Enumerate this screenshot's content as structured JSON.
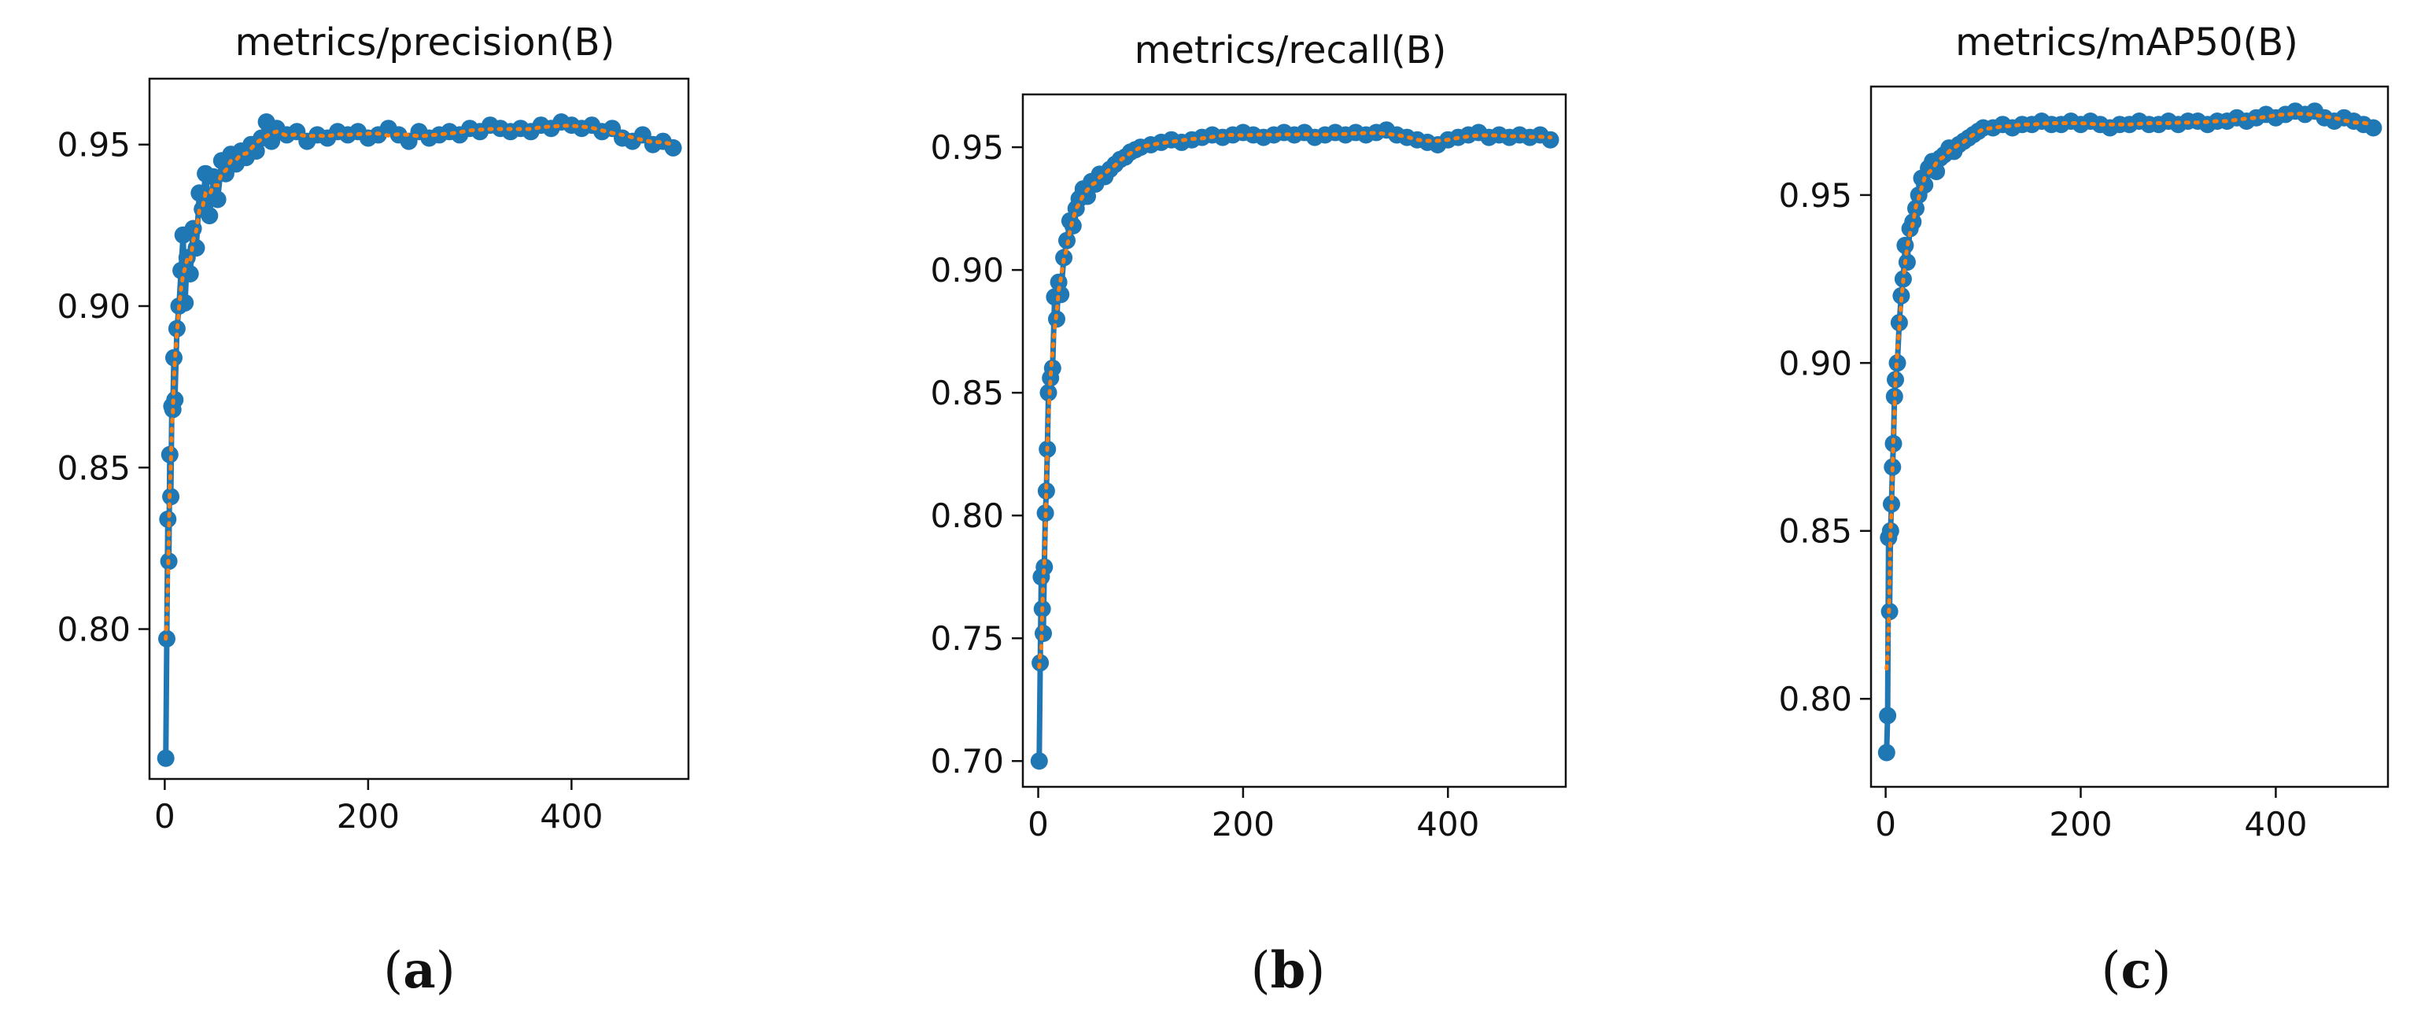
{
  "colors": {
    "series": "#1f77b4",
    "smooth": "#ff7f0e",
    "axis": "#111111"
  },
  "chart_data": [
    {
      "type": "line",
      "title": "metrics/precision(B)",
      "panel_label": "(a)",
      "xlabel": "",
      "ylabel": "",
      "xlim": [
        -15,
        515
      ],
      "ylim": [
        0.7536,
        0.9704
      ],
      "xticks": [
        0,
        200,
        400
      ],
      "xtick_labels": [
        "0",
        "200",
        "400"
      ],
      "yticks": [
        0.8,
        0.85,
        0.9,
        0.95
      ],
      "ytick_labels": [
        "0.80",
        "0.85",
        "0.90",
        "0.95"
      ],
      "series": [
        {
          "x": [
            1,
            2,
            3,
            4,
            5,
            6,
            7,
            8,
            9,
            10,
            12,
            14,
            16,
            18,
            20,
            22,
            25,
            28,
            31,
            34,
            37,
            40,
            44,
            48,
            52,
            56,
            60,
            65,
            70,
            75,
            80,
            85,
            90,
            95,
            100,
            105,
            110,
            120,
            130,
            140,
            150,
            160,
            170,
            180,
            190,
            200,
            210,
            220,
            230,
            240,
            250,
            260,
            270,
            280,
            290,
            300,
            310,
            320,
            330,
            340,
            350,
            360,
            370,
            380,
            390,
            400,
            410,
            420,
            430,
            440,
            450,
            460,
            470,
            480,
            490,
            500
          ],
          "values": [
            0.76,
            0.797,
            0.834,
            0.821,
            0.854,
            0.841,
            0.869,
            0.868,
            0.884,
            0.871,
            0.893,
            0.9,
            0.911,
            0.922,
            0.901,
            0.915,
            0.91,
            0.924,
            0.918,
            0.935,
            0.93,
            0.941,
            0.928,
            0.94,
            0.933,
            0.945,
            0.941,
            0.947,
            0.944,
            0.948,
            0.946,
            0.95,
            0.948,
            0.952,
            0.957,
            0.951,
            0.955,
            0.953,
            0.954,
            0.951,
            0.953,
            0.952,
            0.954,
            0.953,
            0.954,
            0.952,
            0.953,
            0.955,
            0.953,
            0.951,
            0.954,
            0.952,
            0.953,
            0.954,
            0.953,
            0.955,
            0.954,
            0.956,
            0.955,
            0.954,
            0.955,
            0.954,
            0.956,
            0.955,
            0.957,
            0.956,
            0.955,
            0.956,
            0.954,
            0.955,
            0.952,
            0.951,
            0.953,
            0.95,
            0.951,
            0.949
          ]
        }
      ]
    },
    {
      "type": "line",
      "title": "metrics/recall(B)",
      "panel_label": "(b)",
      "xlabel": "",
      "ylabel": "",
      "xlim": [
        -15,
        515
      ],
      "ylim": [
        0.6895,
        0.9715
      ],
      "xticks": [
        0,
        200,
        400
      ],
      "xtick_labels": [
        "0",
        "200",
        "400"
      ],
      "yticks": [
        0.7,
        0.75,
        0.8,
        0.85,
        0.9,
        0.95
      ],
      "ytick_labels": [
        "0.70",
        "0.75",
        "0.80",
        "0.85",
        "0.90",
        "0.95"
      ],
      "series": [
        {
          "x": [
            1,
            2,
            3,
            4,
            5,
            6,
            7,
            8,
            9,
            10,
            12,
            14,
            16,
            18,
            20,
            22,
            25,
            28,
            31,
            34,
            37,
            40,
            44,
            48,
            52,
            56,
            60,
            65,
            70,
            75,
            80,
            85,
            90,
            95,
            100,
            110,
            120,
            130,
            140,
            150,
            160,
            170,
            180,
            190,
            200,
            210,
            220,
            230,
            240,
            250,
            260,
            270,
            280,
            290,
            300,
            310,
            320,
            330,
            340,
            350,
            360,
            370,
            380,
            390,
            400,
            410,
            420,
            430,
            440,
            450,
            460,
            470,
            480,
            490,
            500
          ],
          "values": [
            0.7,
            0.74,
            0.775,
            0.762,
            0.752,
            0.779,
            0.801,
            0.81,
            0.827,
            0.85,
            0.856,
            0.86,
            0.889,
            0.88,
            0.895,
            0.89,
            0.905,
            0.912,
            0.92,
            0.918,
            0.925,
            0.929,
            0.933,
            0.93,
            0.936,
            0.935,
            0.939,
            0.938,
            0.941,
            0.943,
            0.945,
            0.946,
            0.948,
            0.949,
            0.95,
            0.951,
            0.952,
            0.953,
            0.952,
            0.953,
            0.954,
            0.955,
            0.954,
            0.955,
            0.956,
            0.955,
            0.954,
            0.955,
            0.956,
            0.955,
            0.956,
            0.954,
            0.955,
            0.956,
            0.955,
            0.956,
            0.955,
            0.956,
            0.957,
            0.955,
            0.954,
            0.953,
            0.952,
            0.951,
            0.953,
            0.954,
            0.955,
            0.956,
            0.954,
            0.955,
            0.954,
            0.955,
            0.954,
            0.955,
            0.953
          ]
        }
      ]
    },
    {
      "type": "line",
      "title": "metrics/mAP50(B)",
      "panel_label": "(c)",
      "xlabel": "",
      "ylabel": "",
      "xlim": [
        -15,
        515
      ],
      "ylim": [
        0.7738,
        0.9823
      ],
      "xticks": [
        0,
        200,
        400
      ],
      "xtick_labels": [
        "0",
        "200",
        "400"
      ],
      "yticks": [
        0.8,
        0.85,
        0.9,
        0.95
      ],
      "ytick_labels": [
        "0.80",
        "0.85",
        "0.90",
        "0.95"
      ],
      "series": [
        {
          "x": [
            1,
            2,
            3,
            4,
            5,
            6,
            7,
            8,
            9,
            10,
            12,
            14,
            16,
            18,
            20,
            22,
            25,
            28,
            31,
            34,
            37,
            40,
            44,
            48,
            52,
            56,
            60,
            65,
            70,
            75,
            80,
            85,
            90,
            95,
            100,
            110,
            120,
            130,
            140,
            150,
            160,
            170,
            180,
            190,
            200,
            210,
            220,
            230,
            240,
            250,
            260,
            270,
            280,
            290,
            300,
            310,
            320,
            330,
            340,
            350,
            360,
            370,
            380,
            390,
            400,
            410,
            420,
            430,
            440,
            450,
            460,
            470,
            480,
            490,
            500
          ],
          "values": [
            0.784,
            0.795,
            0.848,
            0.826,
            0.85,
            0.858,
            0.869,
            0.876,
            0.89,
            0.895,
            0.9,
            0.912,
            0.92,
            0.925,
            0.935,
            0.93,
            0.94,
            0.942,
            0.946,
            0.95,
            0.955,
            0.953,
            0.958,
            0.96,
            0.957,
            0.961,
            0.962,
            0.964,
            0.963,
            0.965,
            0.966,
            0.967,
            0.968,
            0.969,
            0.97,
            0.97,
            0.971,
            0.97,
            0.971,
            0.971,
            0.972,
            0.971,
            0.971,
            0.972,
            0.971,
            0.972,
            0.971,
            0.97,
            0.971,
            0.971,
            0.972,
            0.971,
            0.971,
            0.972,
            0.971,
            0.972,
            0.972,
            0.971,
            0.972,
            0.972,
            0.973,
            0.972,
            0.973,
            0.974,
            0.973,
            0.974,
            0.975,
            0.974,
            0.975,
            0.973,
            0.972,
            0.973,
            0.972,
            0.971,
            0.97
          ]
        }
      ]
    }
  ]
}
